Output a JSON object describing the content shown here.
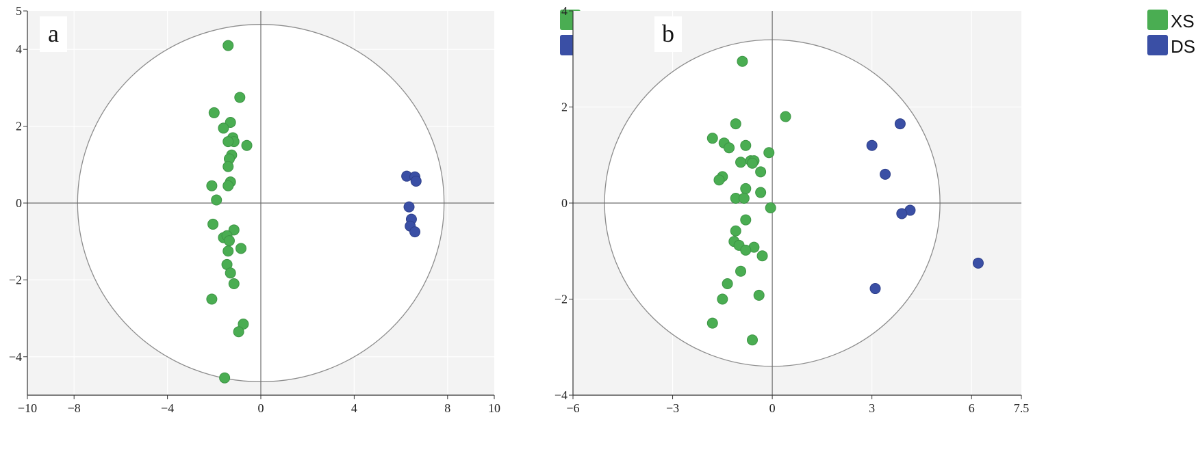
{
  "colors": {
    "xs": "#4aad52",
    "ds": "#3a4fa5",
    "plot_bg": "#f3f3f3",
    "circle_fill": "#ffffff",
    "circle_stroke": "#8c8c8c",
    "axis": "#6e6e6e",
    "grid": "#ffffff"
  },
  "chart_data": [
    {
      "type": "scatter",
      "panel_label": "a",
      "title": "",
      "xlabel": "",
      "ylabel": "",
      "xlim": [
        -10,
        10
      ],
      "ylim": [
        -5,
        5
      ],
      "x_ticks": [
        -10,
        -8,
        -4,
        0,
        4,
        8,
        10
      ],
      "x_tick_labels": [
        "−10",
        "−8",
        "−4",
        "0",
        "4",
        "8",
        "10"
      ],
      "y_ticks": [
        -4,
        -2,
        0,
        2,
        4,
        5
      ],
      "y_tick_labels": [
        "−4",
        "−2",
        "0",
        "2",
        "4",
        "5"
      ],
      "confidence_ellipse": {
        "rx": 7.85,
        "ry": 4.65
      },
      "grid": true,
      "legend": {
        "placement": "top-right"
      },
      "series": [
        {
          "name": "XS",
          "points": [
            [
              -1.4,
              4.1
            ],
            [
              -0.9,
              2.75
            ],
            [
              -2.0,
              2.35
            ],
            [
              -1.3,
              2.1
            ],
            [
              -1.6,
              1.95
            ],
            [
              -1.2,
              1.7
            ],
            [
              -1.15,
              1.6
            ],
            [
              -1.4,
              1.6
            ],
            [
              -0.6,
              1.5
            ],
            [
              -1.25,
              1.25
            ],
            [
              -1.35,
              1.15
            ],
            [
              -1.4,
              0.95
            ],
            [
              -1.3,
              0.55
            ],
            [
              -2.1,
              0.45
            ],
            [
              -1.4,
              0.45
            ],
            [
              -1.9,
              0.08
            ],
            [
              -2.05,
              -0.55
            ],
            [
              -1.15,
              -0.7
            ],
            [
              -1.6,
              -0.9
            ],
            [
              -1.45,
              -0.85
            ],
            [
              -1.35,
              -0.98
            ],
            [
              -0.85,
              -1.18
            ],
            [
              -1.4,
              -1.25
            ],
            [
              -1.45,
              -1.6
            ],
            [
              -1.3,
              -1.82
            ],
            [
              -1.15,
              -2.1
            ],
            [
              -2.1,
              -2.5
            ],
            [
              -0.75,
              -3.15
            ],
            [
              -0.95,
              -3.35
            ],
            [
              -1.55,
              -4.55
            ]
          ]
        },
        {
          "name": "DS",
          "points": [
            [
              6.25,
              0.7
            ],
            [
              6.6,
              0.68
            ],
            [
              6.65,
              0.57
            ],
            [
              6.35,
              -0.1
            ],
            [
              6.45,
              -0.42
            ],
            [
              6.4,
              -0.6
            ],
            [
              6.6,
              -0.75
            ]
          ]
        }
      ]
    },
    {
      "type": "scatter",
      "panel_label": "b",
      "title": "",
      "xlabel": "",
      "ylabel": "",
      "xlim": [
        -6,
        7.5
      ],
      "ylim": [
        -4,
        4
      ],
      "x_ticks": [
        -6,
        -3,
        0,
        3,
        6,
        7.5
      ],
      "x_tick_labels": [
        "−6",
        "−3",
        "0",
        "3",
        "6",
        "7.5"
      ],
      "y_ticks": [
        -4,
        -2,
        0,
        2,
        4
      ],
      "y_tick_labels": [
        "−4",
        "−2",
        "0",
        "2",
        "4"
      ],
      "confidence_ellipse": {
        "rx": 5.05,
        "ry": 3.4
      },
      "grid": true,
      "legend": {
        "placement": "top-right"
      },
      "series": [
        {
          "name": "XS",
          "points": [
            [
              -0.9,
              2.95
            ],
            [
              0.4,
              1.8
            ],
            [
              -1.1,
              1.65
            ],
            [
              -1.8,
              1.35
            ],
            [
              -1.45,
              1.25
            ],
            [
              -1.3,
              1.15
            ],
            [
              -0.8,
              1.2
            ],
            [
              -0.1,
              1.05
            ],
            [
              -0.95,
              0.85
            ],
            [
              -0.65,
              0.88
            ],
            [
              -0.55,
              0.88
            ],
            [
              -0.6,
              0.83
            ],
            [
              -0.35,
              0.65
            ],
            [
              -1.5,
              0.55
            ],
            [
              -1.6,
              0.48
            ],
            [
              -0.8,
              0.3
            ],
            [
              -0.35,
              0.22
            ],
            [
              -1.1,
              0.1
            ],
            [
              -0.85,
              0.1
            ],
            [
              -0.05,
              -0.1
            ],
            [
              -0.8,
              -0.35
            ],
            [
              -1.1,
              -0.58
            ],
            [
              -1.15,
              -0.8
            ],
            [
              -1.0,
              -0.88
            ],
            [
              -0.55,
              -0.92
            ],
            [
              -0.8,
              -0.98
            ],
            [
              -0.3,
              -1.1
            ],
            [
              -0.95,
              -1.42
            ],
            [
              -1.35,
              -1.68
            ],
            [
              -1.5,
              -2.0
            ],
            [
              -0.4,
              -1.92
            ],
            [
              -1.8,
              -2.5
            ],
            [
              -0.6,
              -2.85
            ]
          ]
        },
        {
          "name": "DS",
          "points": [
            [
              3.85,
              1.65
            ],
            [
              3.0,
              1.2
            ],
            [
              3.4,
              0.6
            ],
            [
              4.15,
              -0.15
            ],
            [
              3.9,
              -0.22
            ],
            [
              6.2,
              -1.25
            ],
            [
              3.1,
              -1.78
            ]
          ]
        }
      ]
    }
  ]
}
